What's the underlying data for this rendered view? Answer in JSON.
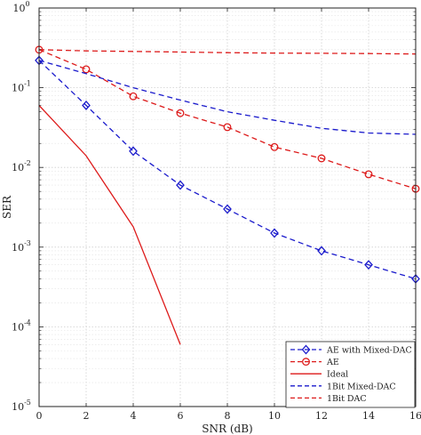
{
  "chart_data": {
    "type": "line",
    "xlabel": "SNR (dB)",
    "ylabel": "SER",
    "xscale": "linear",
    "yscale": "log",
    "xlim": [
      0,
      16
    ],
    "ylim": [
      1e-05,
      1
    ],
    "grid": true,
    "legend_position": "bottom-right",
    "x_ticks": [
      0,
      2,
      4,
      6,
      8,
      10,
      12,
      14,
      16
    ],
    "x_tick_labels": [
      "0",
      "2",
      "4",
      "6",
      "8",
      "10",
      "12",
      "14",
      "16"
    ],
    "y_ticks": [
      {
        "value": 1,
        "base": "10",
        "exp": "0"
      },
      {
        "value": 0.1,
        "base": "10",
        "exp": "-1"
      },
      {
        "value": 0.01,
        "base": "10",
        "exp": "-2"
      },
      {
        "value": 0.001,
        "base": "10",
        "exp": "-3"
      },
      {
        "value": 0.0001,
        "base": "10",
        "exp": "-4"
      },
      {
        "value": 1e-05,
        "base": "10",
        "exp": "-5"
      }
    ],
    "series": [
      {
        "name": "AE with Mixed-DAC",
        "color": "#1a1acc",
        "dash": "dashed",
        "marker": "diamond",
        "x": [
          0,
          2,
          4,
          6,
          8,
          10,
          12,
          14,
          16
        ],
        "y": [
          0.22,
          0.06,
          0.016,
          0.006,
          0.003,
          0.0015,
          0.0009,
          0.0006,
          0.0004
        ]
      },
      {
        "name": "AE",
        "color": "#dd1a1a",
        "dash": "dashed",
        "marker": "circle",
        "x": [
          0,
          2,
          4,
          6,
          8,
          10,
          12,
          14,
          16
        ],
        "y": [
          0.3,
          0.17,
          0.078,
          0.048,
          0.032,
          0.018,
          0.013,
          0.0082,
          0.0054
        ]
      },
      {
        "name": "Ideal",
        "color": "#dd1a1a",
        "dash": "solid",
        "marker": "none",
        "x": [
          0,
          2,
          4,
          6
        ],
        "y": [
          0.06,
          0.014,
          0.0018,
          6e-05
        ]
      },
      {
        "name": "1Bit Mixed-DAC",
        "color": "#1a1acc",
        "dash": "dashed",
        "marker": "none",
        "x": [
          0,
          2,
          4,
          6,
          8,
          10,
          12,
          14,
          16
        ],
        "y": [
          0.22,
          0.15,
          0.1,
          0.07,
          0.05,
          0.039,
          0.031,
          0.027,
          0.026
        ]
      },
      {
        "name": "1Bit DAC",
        "color": "#dd1a1a",
        "dash": "dashed",
        "marker": "none",
        "x": [
          0,
          2,
          4,
          6,
          8,
          10,
          12,
          14,
          16
        ],
        "y": [
          0.3,
          0.29,
          0.285,
          0.28,
          0.275,
          0.272,
          0.27,
          0.268,
          0.265
        ]
      }
    ]
  }
}
